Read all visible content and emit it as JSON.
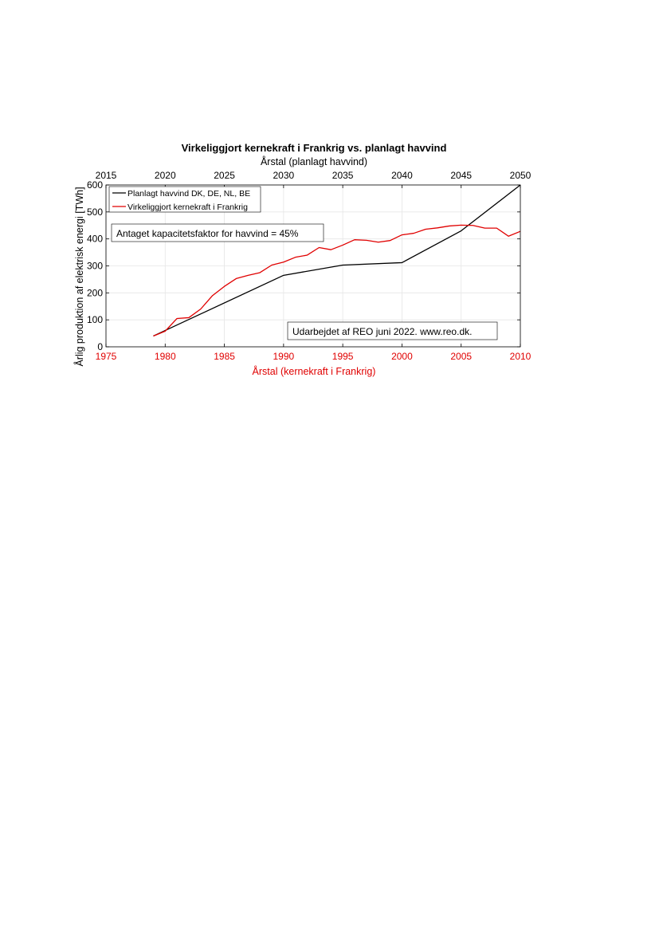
{
  "colors": {
    "planned": "#000000",
    "nuclear": "#e00000",
    "grid": "#e6e6e6",
    "axis": "#000000"
  },
  "chart_data": {
    "type": "line",
    "title": "Virkeliggjort kernekraft i Frankrig vs. planlagt havvind",
    "top_xlabel": "Årstal (planlagt havvind)",
    "bottom_xlabel": "Årstal (kernekraft i Frankrig)",
    "ylabel": "Årlig produktion af elektrisk energi [TWh]",
    "ylim": [
      0,
      600
    ],
    "yticks": [
      "0",
      "100",
      "200",
      "300",
      "400",
      "500",
      "600"
    ],
    "bottom_xlim": [
      1975,
      2010
    ],
    "bottom_xticks": [
      "1975",
      "1980",
      "1985",
      "1990",
      "1995",
      "2000",
      "2005",
      "2010"
    ],
    "top_xlim": [
      2015,
      2050
    ],
    "top_xticks": [
      "2015",
      "2020",
      "2025",
      "2030",
      "2035",
      "2040",
      "2045",
      "2050"
    ],
    "grid": true,
    "legend_position": "top-left",
    "series": [
      {
        "name": "Planlagt havvind DK, DE, NL, BE",
        "axis": "top",
        "color": "planned",
        "x": [
          2019,
          2030,
          2035,
          2040,
          2045,
          2050
        ],
        "y": [
          40,
          265,
          303,
          312,
          430,
          600
        ]
      },
      {
        "name": "Virkeliggjort kernekraft i Frankrig",
        "axis": "bottom",
        "color": "nuclear",
        "x": [
          1979,
          1980,
          1981,
          1982,
          1983,
          1984,
          1985,
          1986,
          1987,
          1988,
          1989,
          1990,
          1991,
          1992,
          1993,
          1994,
          1995,
          1996,
          1997,
          1998,
          1999,
          2000,
          2001,
          2002,
          2003,
          2004,
          2005,
          2006,
          2007,
          2008,
          2009,
          2010
        ],
        "y": [
          40,
          58,
          105,
          108,
          140,
          190,
          224,
          253,
          265,
          275,
          303,
          314,
          332,
          340,
          368,
          360,
          377,
          397,
          395,
          388,
          394,
          415,
          421,
          436,
          441,
          448,
          451,
          450,
          440,
          440,
          410,
          428
        ]
      }
    ],
    "annotations": [
      "Antaget kapacitetsfaktor for havvind = 45%",
      "Udarbejdet af REO juni 2022. www.reo.dk."
    ]
  }
}
